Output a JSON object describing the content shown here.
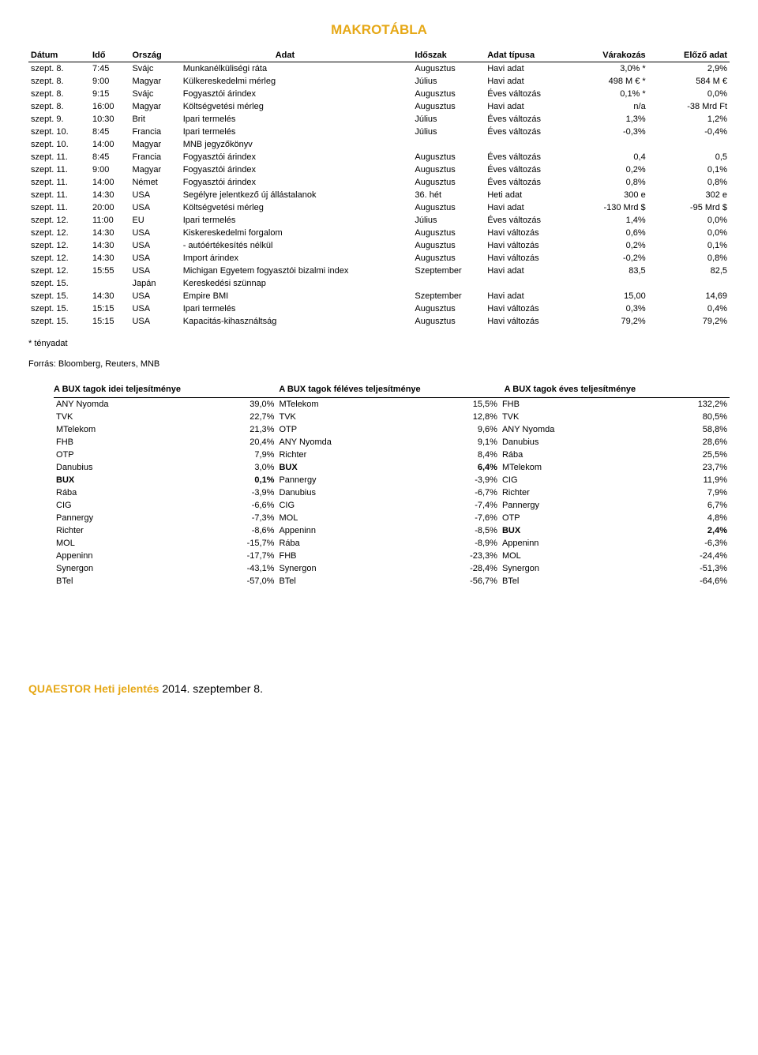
{
  "title": "MAKROTÁBLA",
  "macro": {
    "columns": [
      "Dátum",
      "Idő",
      "Ország",
      "Adat",
      "Időszak",
      "Adat típusa",
      "Várakozás",
      "Előző adat"
    ],
    "rows": [
      [
        "szept. 8.",
        "7:45",
        "Svájc",
        "Munkanélküliségi ráta",
        "Augusztus",
        "Havi adat",
        "3,0% *",
        "2,9%"
      ],
      [
        "szept. 8.",
        "9:00",
        "Magyar",
        "Külkereskedelmi mérleg",
        "Július",
        "Havi adat",
        "498 M € *",
        "584 M €"
      ],
      [
        "szept. 8.",
        "9:15",
        "Svájc",
        "Fogyasztói árindex",
        "Augusztus",
        "Éves változás",
        "0,1% *",
        "0,0%"
      ],
      [
        "szept. 8.",
        "16:00",
        "Magyar",
        "Költségvetési mérleg",
        "Augusztus",
        "Havi adat",
        "n/a",
        "-38 Mrd Ft"
      ],
      [
        "szept. 9.",
        "10:30",
        "Brit",
        "Ipari termelés",
        "Július",
        "Éves változás",
        "1,3%",
        "1,2%"
      ],
      [
        "szept. 10.",
        "8:45",
        "Francia",
        "Ipari termelés",
        "Július",
        "Éves változás",
        "-0,3%",
        "-0,4%"
      ],
      [
        "szept. 10.",
        "14:00",
        "Magyar",
        "MNB jegyzőkönyv",
        "",
        "",
        "",
        ""
      ],
      [
        "szept. 11.",
        "8:45",
        "Francia",
        "Fogyasztói árindex",
        "Augusztus",
        "Éves változás",
        "0,4",
        "0,5"
      ],
      [
        "szept. 11.",
        "9:00",
        "Magyar",
        "Fogyasztói árindex",
        "Augusztus",
        "Éves változás",
        "0,2%",
        "0,1%"
      ],
      [
        "szept. 11.",
        "14:00",
        "Német",
        "Fogyasztói árindex",
        "Augusztus",
        "Éves változás",
        "0,8%",
        "0,8%"
      ],
      [
        "szept. 11.",
        "14:30",
        "USA",
        "Segélyre jelentkező új állástalanok",
        "36. hét",
        "Heti adat",
        "300 e",
        "302 e"
      ],
      [
        "szept. 11.",
        "20:00",
        "USA",
        "Költségvetési mérleg",
        "Augusztus",
        "Havi adat",
        "-130 Mrd $",
        "-95 Mrd $"
      ],
      [
        "szept. 12.",
        "11:00",
        "EU",
        "Ipari termelés",
        "Július",
        "Éves változás",
        "1,4%",
        "0,0%"
      ],
      [
        "szept. 12.",
        "14:30",
        "USA",
        "Kiskereskedelmi forgalom",
        "Augusztus",
        "Havi változás",
        "0,6%",
        "0,0%"
      ],
      [
        "szept. 12.",
        "14:30",
        "USA",
        " - autóértékesítés nélkül",
        "Augusztus",
        "Havi változás",
        "0,2%",
        "0,1%"
      ],
      [
        "szept. 12.",
        "14:30",
        "USA",
        "Import árindex",
        "Augusztus",
        "Havi változás",
        "-0,2%",
        "0,8%"
      ],
      [
        "szept. 12.",
        "15:55",
        "USA",
        "Michigan Egyetem fogyasztói bizalmi index",
        "Szeptember",
        "Havi adat",
        "83,5",
        "82,5"
      ],
      [
        "szept. 15.",
        "",
        "Japán",
        "Kereskedési szünnap",
        "",
        "",
        "",
        ""
      ],
      [
        "szept. 15.",
        "14:30",
        "USA",
        "Empire BMI",
        "Szeptember",
        "Havi adat",
        "15,00",
        "14,69"
      ],
      [
        "szept. 15.",
        "15:15",
        "USA",
        "Ipari termelés",
        "Augusztus",
        "Havi változás",
        "0,3%",
        "0,4%"
      ],
      [
        "szept. 15.",
        "15:15",
        "USA",
        "Kapacitás-kihasználtság",
        "Augusztus",
        "Havi változás",
        "79,2%",
        "79,2%"
      ]
    ],
    "col_widths": [
      "68px",
      "44px",
      "56px",
      "256px",
      "80px",
      "90px",
      "90px",
      "90px"
    ]
  },
  "footnote": "* tényadat",
  "source": "Forrás: Bloomberg, Reuters, MNB",
  "perf": {
    "headers": [
      "A BUX tagok idei teljesítménye",
      "A BUX tagok féléves teljesítménye",
      "A BUX tagok éves teljesítménye"
    ],
    "rows": [
      [
        [
          "ANY Nyomda",
          "39,0%"
        ],
        [
          "MTelekom",
          "15,5%"
        ],
        [
          "FHB",
          "132,2%"
        ]
      ],
      [
        [
          "TVK",
          "22,7%"
        ],
        [
          "TVK",
          "12,8%"
        ],
        [
          "TVK",
          "80,5%"
        ]
      ],
      [
        [
          "MTelekom",
          "21,3%"
        ],
        [
          "OTP",
          "9,6%"
        ],
        [
          "ANY Nyomda",
          "58,8%"
        ]
      ],
      [
        [
          "FHB",
          "20,4%"
        ],
        [
          "ANY Nyomda",
          "9,1%"
        ],
        [
          "Danubius",
          "28,6%"
        ]
      ],
      [
        [
          "OTP",
          "7,9%"
        ],
        [
          "Richter",
          "8,4%"
        ],
        [
          "Rába",
          "25,5%"
        ]
      ],
      [
        [
          "Danubius",
          "3,0%"
        ],
        [
          "BUX",
          "6,4%",
          true
        ],
        [
          "MTelekom",
          "23,7%"
        ]
      ],
      [
        [
          "BUX",
          "0,1%",
          true
        ],
        [
          "Pannergy",
          "-3,9%"
        ],
        [
          "CIG",
          "11,9%"
        ]
      ],
      [
        [
          "Rába",
          "-3,9%"
        ],
        [
          "Danubius",
          "-6,7%"
        ],
        [
          "Richter",
          "7,9%"
        ]
      ],
      [
        [
          "CIG",
          "-6,6%"
        ],
        [
          "CIG",
          "-7,4%"
        ],
        [
          "Pannergy",
          "6,7%"
        ]
      ],
      [
        [
          "Pannergy",
          "-7,3%"
        ],
        [
          "MOL",
          "-7,6%"
        ],
        [
          "OTP",
          "4,8%"
        ]
      ],
      [
        [
          "Richter",
          "-8,6%"
        ],
        [
          "Appeninn",
          "-8,5%"
        ],
        [
          "BUX",
          "2,4%",
          true
        ]
      ],
      [
        [
          "MOL",
          "-15,7%"
        ],
        [
          "Rába",
          "-8,9%"
        ],
        [
          "Appeninn",
          "-6,3%"
        ]
      ],
      [
        [
          "Appeninn",
          "-17,7%"
        ],
        [
          "FHB",
          "-23,3%"
        ],
        [
          "MOL",
          "-24,4%"
        ]
      ],
      [
        [
          "Synergon",
          "-43,1%"
        ],
        [
          "Synergon",
          "-28,4%"
        ],
        [
          "Synergon",
          "-51,3%"
        ]
      ],
      [
        [
          "BTel",
          "-57,0%"
        ],
        [
          "BTel",
          "-56,7%"
        ],
        [
          "BTel",
          "-64,6%"
        ]
      ]
    ]
  },
  "footer": {
    "brand": "QUAESTOR Heti jelentés",
    "date": " 2014. szeptember 8."
  },
  "colors": {
    "accent": "#e6a817",
    "text": "#000000",
    "background": "#ffffff",
    "border": "#000000"
  }
}
